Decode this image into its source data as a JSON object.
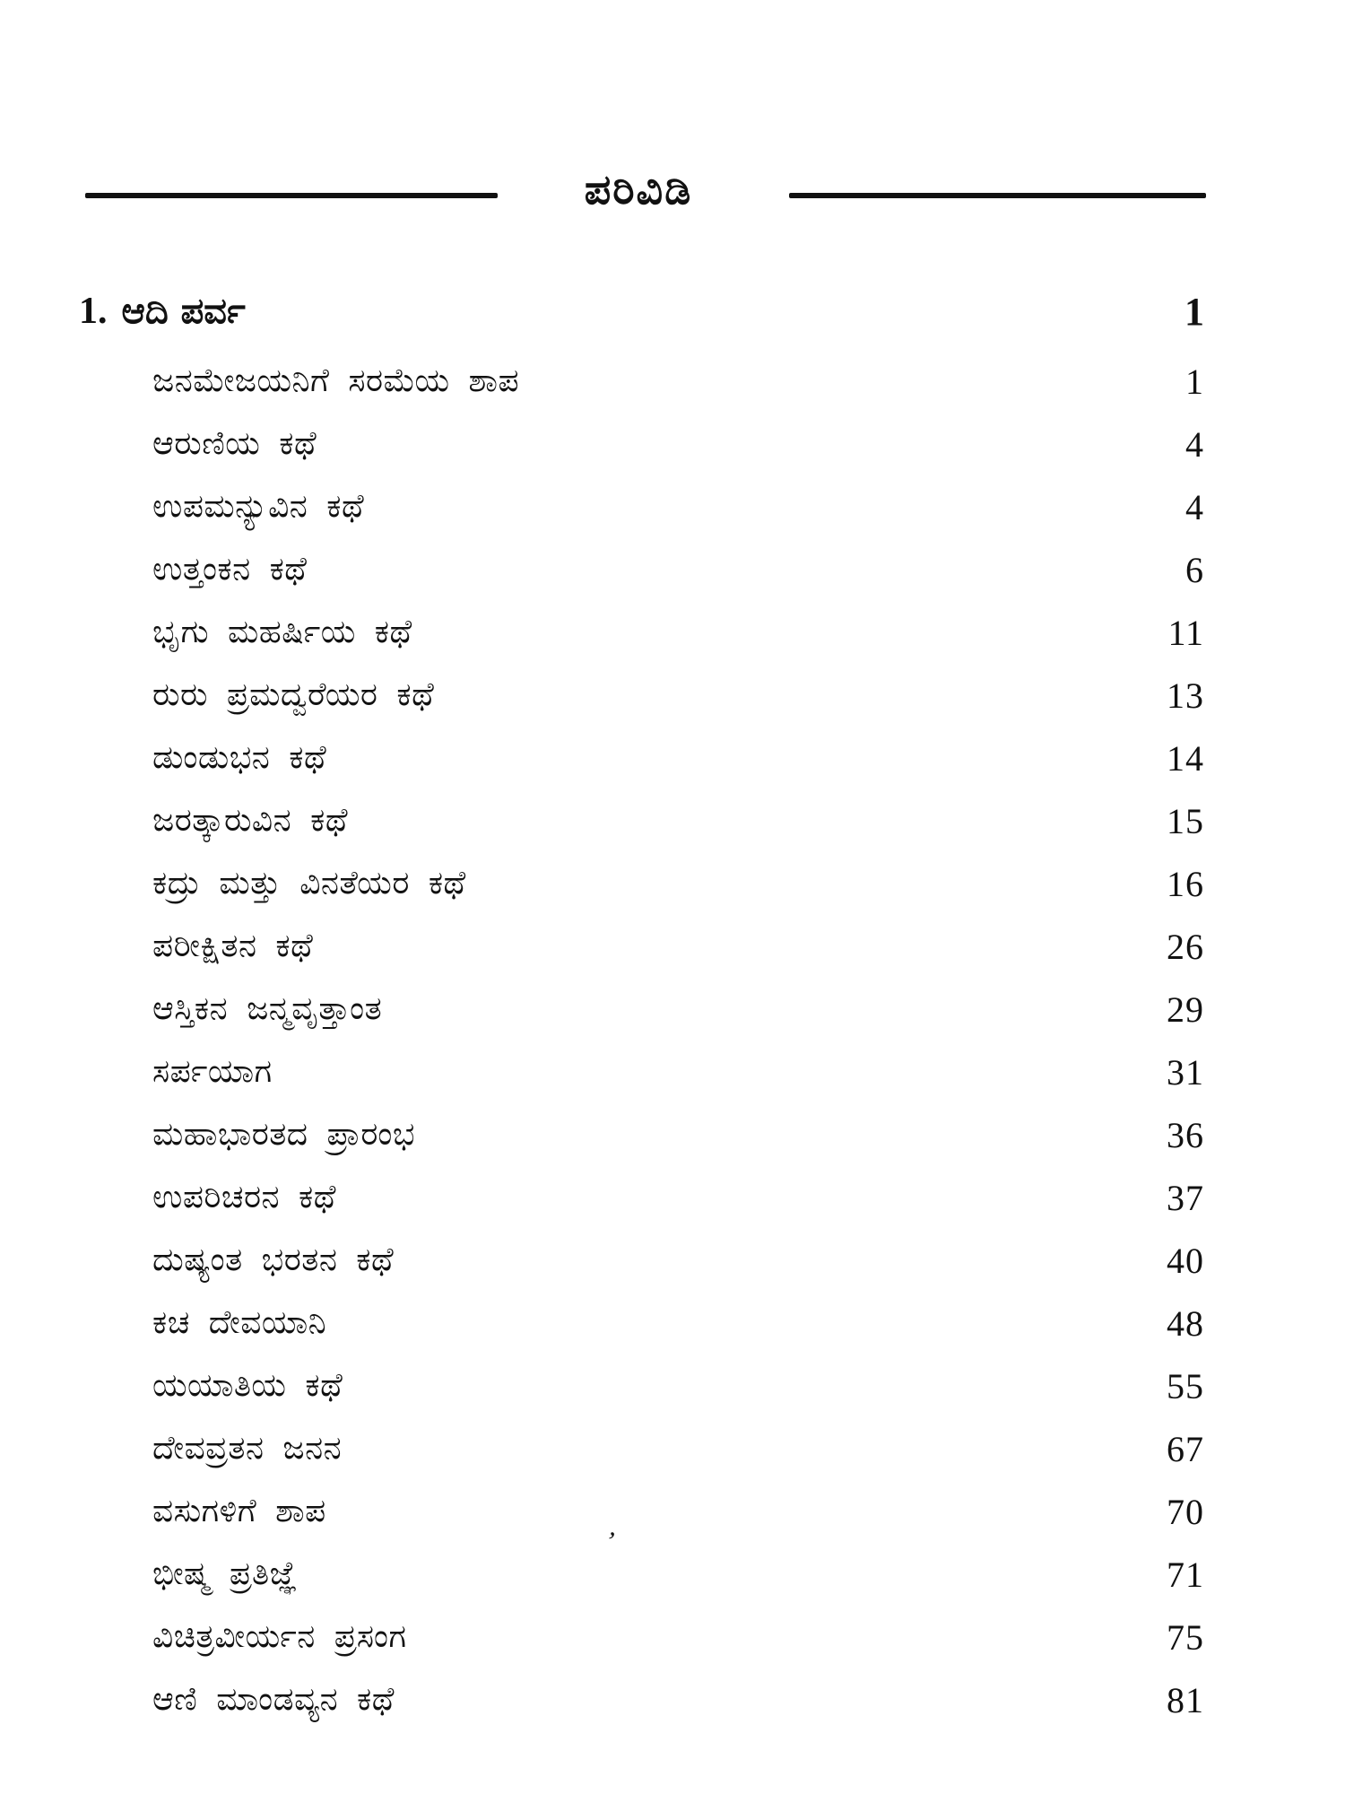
{
  "colors": {
    "ink": "#111111",
    "paper": "#ffffff"
  },
  "header": {
    "title": "ಪರಿವಿಡಿ"
  },
  "chapter": {
    "number": "1.",
    "title": "ಆದಿ ಪರ್ವ",
    "page": "1"
  },
  "entries": [
    {
      "label": "ಜನಮೇಜಯನಿಗೆ ಸರಮೆಯ ಶಾಪ",
      "page": "1"
    },
    {
      "label": "ಆರುಣಿಯ ಕಥೆ",
      "page": "4"
    },
    {
      "label": "ಉಪಮನ್ಯುವಿನ ಕಥೆ",
      "page": "4"
    },
    {
      "label": "ಉತ್ತಂಕನ ಕಥೆ",
      "page": "6"
    },
    {
      "label": "ಭೃಗು ಮಹರ್ಷಿಯ ಕಥೆ",
      "page": "11"
    },
    {
      "label": "ರುರು ಪ್ರಮದ್ವರೆಯರ ಕಥೆ",
      "page": "13"
    },
    {
      "label": "ಡುಂಡುಭನ ಕಥೆ",
      "page": "14"
    },
    {
      "label": "ಜರತ್ಕಾರುವಿನ ಕಥೆ",
      "page": "15"
    },
    {
      "label": "ಕದ್ರು ಮತ್ತು ವಿನತೆಯರ ಕಥೆ",
      "page": "16"
    },
    {
      "label": "ಪರೀಕ್ಷಿತನ ಕಥೆ",
      "page": "26"
    },
    {
      "label": "ಆಸ್ತಿಕನ ಜನ್ಮವೃತ್ತಾಂತ",
      "page": "29"
    },
    {
      "label": "ಸರ್ಪಯಾಗ",
      "page": "31"
    },
    {
      "label": "ಮಹಾಭಾರತದ ಪ್ರಾರಂಭ",
      "page": "36"
    },
    {
      "label": "ಉಪರಿಚರನ ಕಥೆ",
      "page": "37"
    },
    {
      "label": "ದುಷ್ಯಂತ ಭರತನ ಕಥೆ",
      "page": "40"
    },
    {
      "label": "ಕಚ ದೇವಯಾನಿ",
      "page": "48"
    },
    {
      "label": "ಯಯಾತಿಯ ಕಥೆ",
      "page": "55"
    },
    {
      "label": "ದೇವವ್ರತನ ಜನನ",
      "page": "67"
    },
    {
      "label": "ವಸುಗಳಿಗೆ ಶಾಪ",
      "page": "70"
    },
    {
      "label": "ಭೀಷ್ಮ ಪ್ರತಿಜ್ಞೆ",
      "page": "71"
    },
    {
      "label": "ವಿಚಿತ್ರವೀರ್ಯನ ಪ್ರಸಂಗ",
      "page": "75"
    },
    {
      "label": "ಆಣಿ ಮಾಂಡವ್ಯನ ಕಥೆ",
      "page": "81"
    }
  ],
  "decor": {
    "stray_mark": "’"
  }
}
